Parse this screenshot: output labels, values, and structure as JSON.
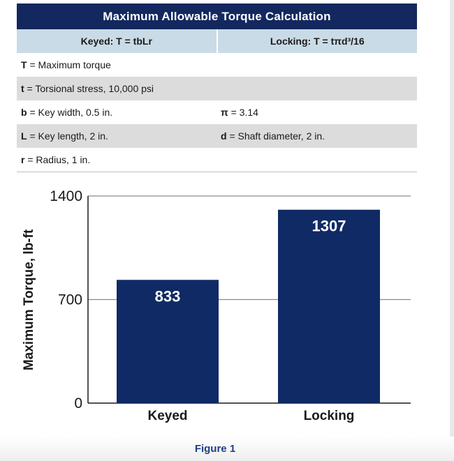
{
  "table": {
    "title": "Maximum Allowable Torque Calculation",
    "formula_keyed": "Keyed: T = tbLr",
    "formula_locking": "Locking: T = tπd³/16",
    "rows": [
      {
        "left": {
          "sym": "T",
          "text": " = Maximum torque"
        },
        "right": null
      },
      {
        "left": {
          "sym": "t",
          "text": " = Torsional stress, 10,000 psi"
        },
        "right": null
      },
      {
        "left": {
          "sym": "b",
          "text": " = Key width, 0.5 in."
        },
        "right": {
          "sym": "π",
          "text": " = 3.14"
        }
      },
      {
        "left": {
          "sym": "L",
          "text": " = Key length, 2 in."
        },
        "right": {
          "sym": "d",
          "text": " = Shaft diameter, 2 in."
        }
      },
      {
        "left": {
          "sym": "r",
          "text": " = Radius, 1 in."
        },
        "right": null
      }
    ]
  },
  "chart_data": {
    "type": "bar",
    "categories": [
      "Keyed",
      "Locking"
    ],
    "values": [
      833,
      1307
    ],
    "ylabel": "Maximum Torque, lb-ft",
    "xlabel": "",
    "ylim": [
      0,
      1400
    ],
    "yticks": [
      0,
      700,
      1400
    ],
    "grid": true,
    "data_labels": true,
    "bar_color": "#0f2a64",
    "label_color": "#ffffff"
  },
  "caption": "Figure 1"
}
